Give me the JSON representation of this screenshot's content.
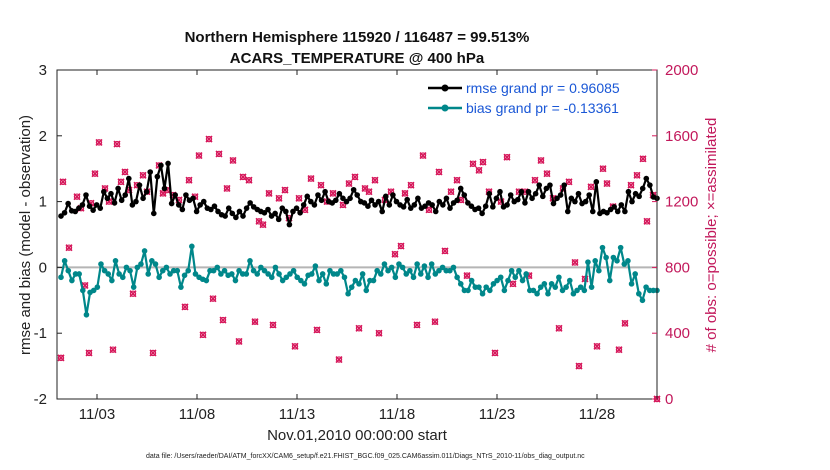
{
  "chart_data": {
    "type": "line",
    "title_line1": "Northern Hemisphere 115920 / 116487 = 99.513%",
    "title_line2": "ACARS_TEMPERATURE @ 400 hPa",
    "xlabel": "Nov.01,2010 00:00:00 start",
    "ylabel_left": "rmse and bias (model - observation)",
    "ylabel_right": "# of obs: o=possible; ×=assimilated",
    "footer": "data file: /Users/raeder/DAI/ATM_forcXX/CAM6_setup/f.e21.FHIST_BGC.f09_025.CAM6assim.011/Diags_NTrS_2010-11/obs_diag_output.nc",
    "x_ticks": [
      {
        "day": 3,
        "label": "11/03"
      },
      {
        "day": 8,
        "label": "11/08"
      },
      {
        "day": 13,
        "label": "11/13"
      },
      {
        "day": 18,
        "label": "11/18"
      },
      {
        "day": 23,
        "label": "11/23"
      },
      {
        "day": 28,
        "label": "11/28"
      }
    ],
    "xlim": [
      1,
      31
    ],
    "ylim_left": [
      -2,
      3
    ],
    "yticks_left": [
      -2,
      -1,
      0,
      1,
      2,
      3
    ],
    "ylim_right": [
      0,
      2000
    ],
    "yticks_right": [
      0,
      400,
      800,
      1200,
      1600,
      2000
    ],
    "legend": [
      {
        "name": "rmse grand pr = 0.96085",
        "color": "#000000"
      },
      {
        "name": "bias grand pr = -0.13361",
        "color": "#00878a"
      }
    ],
    "colors": {
      "rmse": "#000000",
      "bias": "#00878a",
      "obs": "#d6185b",
      "zero_line": "#b5b5b5"
    },
    "series": [
      {
        "name": "rmse",
        "values": [
          0.78,
          0.83,
          0.97,
          0.86,
          0.85,
          0.9,
          0.95,
          1.1,
          0.93,
          0.87,
          0.95,
          0.9,
          1.15,
          1.05,
          1.12,
          0.98,
          1.2,
          1.02,
          1.1,
          1.35,
          0.95,
          1.0,
          1.25,
          1.05,
          1.15,
          1.45,
          0.82,
          1.38,
          1.55,
          1.2,
          1.58,
          0.97,
          1.1,
          0.95,
          0.88,
          1.1,
          1.02,
          1.05,
          0.85,
          0.95,
          1.0,
          0.9,
          0.88,
          0.93,
          0.85,
          0.8,
          0.78,
          0.9,
          0.82,
          0.76,
          0.85,
          0.78,
          0.9,
          0.98,
          0.92,
          0.88,
          0.85,
          0.83,
          0.88,
          0.78,
          0.82,
          0.73,
          0.9,
          0.85,
          0.65,
          0.85,
          0.9,
          0.83,
          0.95,
          1.08,
          1.0,
          0.95,
          1.1,
          1.02,
          1.15,
          1.0,
          0.98,
          1.02,
          1.12,
          1.05,
          1.0,
          1.05,
          1.18,
          1.1,
          1.0,
          0.98,
          0.93,
          1.02,
          0.95,
          1.0,
          0.85,
          1.08,
          0.95,
          1.1,
          1.0,
          0.95,
          0.92,
          1.03,
          0.9,
          0.95,
          1.05,
          0.9,
          0.93,
          0.98,
          0.95,
          0.85,
          1.0,
          0.95,
          1.05,
          0.9,
          0.98,
          1.02,
          1.2,
          1.1,
          0.98,
          0.93,
          0.88,
          0.9,
          0.82,
          0.93,
          1.12,
          0.92,
          1.05,
          1.15,
          0.92,
          0.95,
          1.1,
          1.0,
          1.03,
          1.15,
          0.98,
          1.15,
          1.05,
          1.12,
          1.25,
          1.08,
          1.2,
          1.25,
          0.97,
          1.05,
          1.1,
          1.25,
          0.85,
          1.05,
          1.0,
          1.12,
          0.97,
          1.0,
          1.1,
          0.85,
          1.3,
          0.82,
          0.85,
          0.83,
          0.88,
          0.92,
          0.85,
          0.95,
          0.85,
          1.15,
          1.0,
          1.12,
          1.08,
          1.2,
          1.35,
          1.25,
          1.07,
          1.05
        ],
        "marker": "filled-circle"
      },
      {
        "name": "bias",
        "values": [
          -0.15,
          0.1,
          -0.05,
          -0.2,
          -0.1,
          -0.1,
          -0.35,
          -0.72,
          -0.38,
          -0.35,
          -0.3,
          0.05,
          -0.05,
          -0.1,
          -0.2,
          0.1,
          -0.1,
          -0.15,
          0.0,
          -0.05,
          -0.3,
          0.0,
          0.05,
          0.25,
          -0.1,
          0.1,
          0.05,
          -0.15,
          -0.05,
          0.0,
          -0.1,
          -0.05,
          -0.05,
          -0.3,
          -0.12,
          -0.05,
          0.32,
          -0.1,
          -0.15,
          -0.18,
          -0.2,
          -0.05,
          -0.05,
          0.0,
          -0.1,
          -0.05,
          -0.12,
          -0.1,
          -0.2,
          -0.05,
          -0.1,
          -0.1,
          0.1,
          -0.05,
          -0.1,
          0.0,
          -0.05,
          -0.1,
          -0.15,
          0.0,
          -0.1,
          -0.2,
          -0.15,
          -0.1,
          -0.05,
          -0.15,
          -0.2,
          -0.25,
          -0.12,
          -0.1,
          0.02,
          -0.2,
          -0.1,
          -0.25,
          -0.05,
          -0.1,
          -0.1,
          -0.05,
          -0.15,
          -0.4,
          -0.3,
          -0.2,
          -0.25,
          -0.1,
          -0.35,
          -0.2,
          -0.2,
          -0.05,
          -0.1,
          0.05,
          -0.05,
          0.0,
          -0.15,
          0.05,
          0.0,
          -0.1,
          -0.05,
          -0.15,
          0.05,
          -0.1,
          0.02,
          -0.15,
          0.05,
          -0.1,
          -0.05,
          0.0,
          -0.05,
          -0.05,
          0.0,
          -0.15,
          -0.25,
          -0.35,
          -0.35,
          -0.2,
          -0.3,
          -0.3,
          -0.4,
          -0.3,
          -0.35,
          -0.25,
          -0.2,
          -0.15,
          -0.35,
          -0.2,
          -0.05,
          -0.15,
          -0.05,
          -0.2,
          -0.1,
          -0.35,
          -0.35,
          -0.4,
          -0.3,
          -0.25,
          -0.4,
          -0.25,
          -0.3,
          -0.15,
          -0.35,
          -0.3,
          -0.2,
          -0.4,
          -0.35,
          -0.3,
          -0.35,
          0.08,
          -0.3,
          0.1,
          -0.05,
          0.3,
          0.15,
          -0.2,
          0.15,
          0.1,
          0.3,
          0.05,
          0.1,
          -0.25,
          -0.1,
          -0.4,
          -0.5,
          -0.3,
          -0.35,
          -0.35,
          -0.35
        ],
        "marker": "filled-circle"
      }
    ],
    "obs_points_day_count": [
      [
        1.2,
        250
      ],
      [
        1.3,
        1320
      ],
      [
        1.6,
        920
      ],
      [
        2.0,
        1230
      ],
      [
        2.2,
        1160
      ],
      [
        2.4,
        690
      ],
      [
        2.6,
        280
      ],
      [
        2.7,
        1190
      ],
      [
        2.9,
        1370
      ],
      [
        3.1,
        1560
      ],
      [
        3.4,
        1280
      ],
      [
        3.6,
        1200
      ],
      [
        3.8,
        300
      ],
      [
        4.0,
        1550
      ],
      [
        4.2,
        1320
      ],
      [
        4.4,
        1380
      ],
      [
        4.6,
        1270
      ],
      [
        4.8,
        640
      ],
      [
        5.0,
        1300
      ],
      [
        5.3,
        1360
      ],
      [
        5.5,
        1260
      ],
      [
        5.8,
        280
      ],
      [
        6.1,
        1420
      ],
      [
        6.3,
        1250
      ],
      [
        6.5,
        1270
      ],
      [
        6.8,
        1240
      ],
      [
        7.1,
        1210
      ],
      [
        7.4,
        560
      ],
      [
        7.6,
        1330
      ],
      [
        7.9,
        1230
      ],
      [
        8.1,
        1480
      ],
      [
        8.3,
        390
      ],
      [
        8.6,
        1580
      ],
      [
        8.8,
        610
      ],
      [
        9.1,
        1490
      ],
      [
        9.3,
        480
      ],
      [
        9.5,
        1280
      ],
      [
        9.8,
        1450
      ],
      [
        10.1,
        350
      ],
      [
        10.3,
        1350
      ],
      [
        10.6,
        1330
      ],
      [
        10.9,
        470
      ],
      [
        11.1,
        1080
      ],
      [
        11.3,
        1060
      ],
      [
        11.6,
        1250
      ],
      [
        11.8,
        450
      ],
      [
        12.1,
        1220
      ],
      [
        12.4,
        1270
      ],
      [
        12.6,
        1100
      ],
      [
        12.9,
        320
      ],
      [
        13.1,
        1220
      ],
      [
        13.4,
        1150
      ],
      [
        13.7,
        1340
      ],
      [
        14.0,
        420
      ],
      [
        14.2,
        1300
      ],
      [
        14.5,
        1200
      ],
      [
        14.8,
        1250
      ],
      [
        15.1,
        240
      ],
      [
        15.3,
        1180
      ],
      [
        15.6,
        1310
      ],
      [
        15.9,
        1350
      ],
      [
        16.1,
        430
      ],
      [
        16.4,
        1280
      ],
      [
        16.6,
        1260
      ],
      [
        16.9,
        1330
      ],
      [
        17.1,
        400
      ],
      [
        17.4,
        1210
      ],
      [
        17.7,
        1260
      ],
      [
        17.9,
        880
      ],
      [
        18.2,
        930
      ],
      [
        18.4,
        1250
      ],
      [
        18.7,
        1300
      ],
      [
        19.0,
        450
      ],
      [
        19.3,
        1480
      ],
      [
        19.6,
        1150
      ],
      [
        19.9,
        470
      ],
      [
        20.1,
        1380
      ],
      [
        20.4,
        900
      ],
      [
        20.7,
        1260
      ],
      [
        21.0,
        1330
      ],
      [
        21.2,
        1210
      ],
      [
        21.5,
        750
      ],
      [
        21.8,
        1430
      ],
      [
        22.1,
        1390
      ],
      [
        22.3,
        1440
      ],
      [
        22.6,
        1260
      ],
      [
        22.9,
        280
      ],
      [
        23.2,
        1200
      ],
      [
        23.5,
        1470
      ],
      [
        23.8,
        700
      ],
      [
        24.1,
        1260
      ],
      [
        24.4,
        1260
      ],
      [
        24.6,
        750
      ],
      [
        24.9,
        1330
      ],
      [
        25.2,
        1450
      ],
      [
        25.5,
        1370
      ],
      [
        25.8,
        1220
      ],
      [
        26.1,
        430
      ],
      [
        26.3,
        1280
      ],
      [
        26.6,
        1320
      ],
      [
        26.9,
        830
      ],
      [
        27.1,
        200
      ],
      [
        27.4,
        730
      ],
      [
        27.7,
        1290
      ],
      [
        28.0,
        320
      ],
      [
        28.3,
        1400
      ],
      [
        28.5,
        1310
      ],
      [
        28.8,
        1170
      ],
      [
        29.1,
        300
      ],
      [
        29.4,
        460
      ],
      [
        29.7,
        1300
      ],
      [
        30.0,
        1360
      ],
      [
        30.3,
        1460
      ],
      [
        30.5,
        1080
      ],
      [
        30.8,
        1240
      ],
      [
        31.0,
        0
      ]
    ]
  }
}
